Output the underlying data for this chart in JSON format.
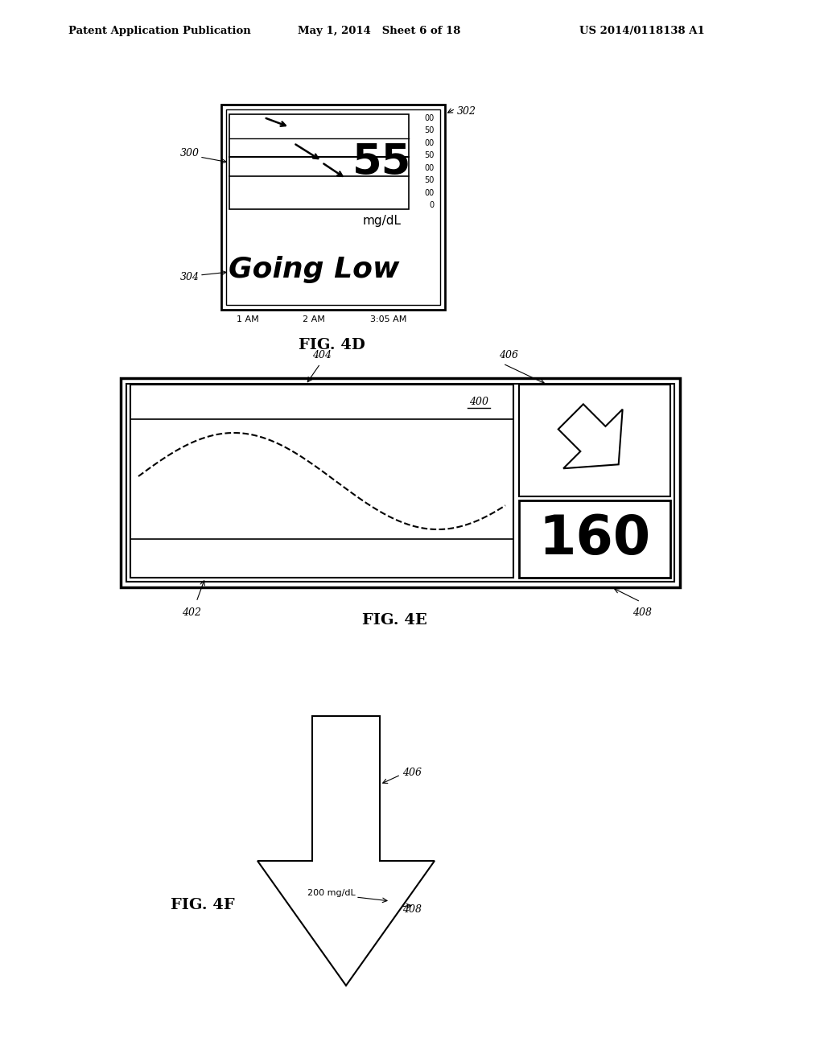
{
  "bg_color": "#ffffff",
  "header_left": "Patent Application Publication",
  "header_mid": "May 1, 2014   Sheet 6 of 18",
  "header_right": "US 2014/0118138 A1",
  "fig4d_label": "FIG. 4D",
  "fig4d_ref_302": "302",
  "fig4d_ref_300": "300",
  "fig4d_ref_304": "304",
  "fig4d_value": "55",
  "fig4d_unit": "mg/dL",
  "fig4d_text": "Going Low",
  "fig4d_times": [
    "1 AM",
    "2 AM",
    "3:05 AM"
  ],
  "fig4d_scale": [
    "00",
    "50",
    "00",
    "50",
    "00",
    "50",
    "00",
    "0"
  ],
  "fig4e_label": "FIG. 4E",
  "fig4e_ref_404": "404",
  "fig4e_ref_406": "406",
  "fig4e_ref_402": "402",
  "fig4e_ref_408": "408",
  "fig4e_ref_400": "400",
  "fig4e_value": "160",
  "fig4f_label": "FIG. 4F",
  "fig4f_ref_406": "406",
  "fig4f_ref_408": "408",
  "fig4f_annotation": "200 mg/dL"
}
